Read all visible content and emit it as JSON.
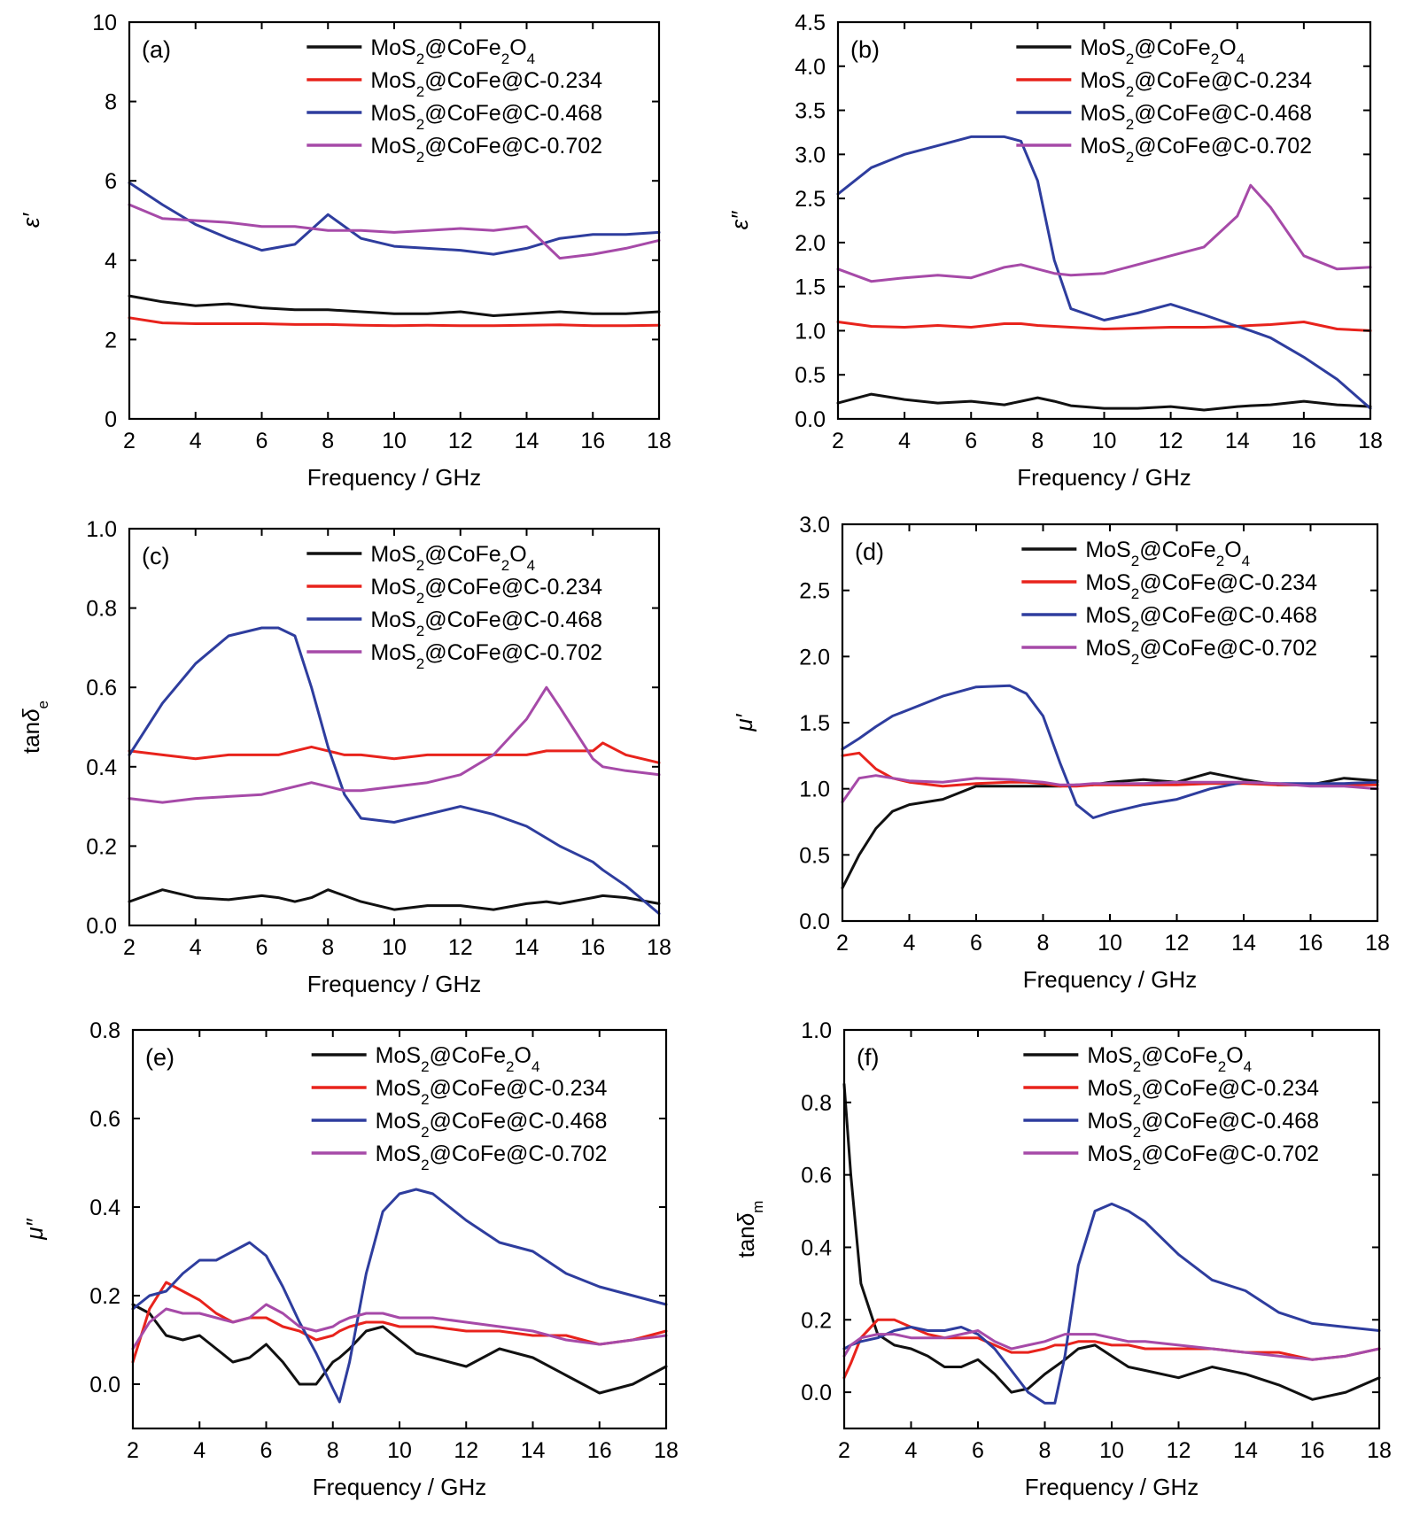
{
  "colors": {
    "black": "#111111",
    "red": "#e8231c",
    "blue": "#2e3d9e",
    "magenta": "#a64aa8"
  },
  "chart_data": [
    {
      "type": "line",
      "panel_label": "(a)",
      "xlabel": "Frequency / GHz",
      "ylabel": "ε′",
      "xlim": [
        2,
        18
      ],
      "ylim": [
        0,
        10
      ],
      "xticks": [
        2,
        4,
        6,
        8,
        10,
        12,
        14,
        16,
        18
      ],
      "yticks": [
        0,
        2,
        4,
        6,
        8,
        10
      ],
      "legend_position": "top-right",
      "x": [
        2,
        3,
        4,
        5,
        6,
        7,
        8,
        9,
        10,
        11,
        12,
        13,
        14,
        15,
        16,
        17,
        18
      ],
      "series": [
        {
          "name": "MoS₂@CoFe₂O₄",
          "color": "black",
          "values": [
            3.1,
            2.95,
            2.85,
            2.9,
            2.8,
            2.75,
            2.75,
            2.7,
            2.65,
            2.65,
            2.7,
            2.6,
            2.65,
            2.7,
            2.65,
            2.65,
            2.7
          ]
        },
        {
          "name": "MoS₂@CoFe@C-0.234",
          "color": "red",
          "values": [
            2.55,
            2.42,
            2.4,
            2.4,
            2.4,
            2.38,
            2.38,
            2.36,
            2.35,
            2.36,
            2.35,
            2.35,
            2.36,
            2.37,
            2.35,
            2.35,
            2.36
          ]
        },
        {
          "name": "MoS₂@CoFe@C-0.468",
          "color": "blue",
          "values": [
            5.95,
            5.4,
            4.9,
            4.55,
            4.25,
            4.4,
            5.15,
            4.55,
            4.35,
            4.3,
            4.25,
            4.15,
            4.3,
            4.55,
            4.65,
            4.65,
            4.7
          ]
        },
        {
          "name": "MoS₂@CoFe@C-0.702",
          "color": "magenta",
          "values": [
            5.4,
            5.05,
            5.0,
            4.95,
            4.85,
            4.85,
            4.75,
            4.75,
            4.7,
            4.75,
            4.8,
            4.75,
            4.85,
            4.05,
            4.15,
            4.3,
            4.5
          ]
        }
      ]
    },
    {
      "type": "line",
      "panel_label": "(b)",
      "xlabel": "Frequency / GHz",
      "ylabel": "ε″",
      "xlim": [
        2,
        18
      ],
      "ylim": [
        0,
        4.5
      ],
      "xticks": [
        2,
        4,
        6,
        8,
        10,
        12,
        14,
        16,
        18
      ],
      "yticks": [
        0.0,
        0.5,
        1.0,
        1.5,
        2.0,
        2.5,
        3.0,
        3.5,
        4.0,
        4.5
      ],
      "legend_position": "top-right",
      "x": [
        2,
        3,
        4,
        5,
        6,
        7,
        7.5,
        8,
        8.5,
        9,
        10,
        11,
        12,
        13,
        14,
        14.4,
        15,
        16,
        17,
        18
      ],
      "series": [
        {
          "name": "MoS₂@CoFe₂O₄",
          "color": "black",
          "values": [
            0.18,
            0.28,
            0.22,
            0.18,
            0.2,
            0.16,
            0.2,
            0.24,
            0.2,
            0.15,
            0.12,
            0.12,
            0.14,
            0.1,
            0.14,
            0.15,
            0.16,
            0.2,
            0.16,
            0.14
          ]
        },
        {
          "name": "MoS₂@CoFe@C-0.234",
          "color": "red",
          "values": [
            1.1,
            1.05,
            1.04,
            1.06,
            1.04,
            1.08,
            1.08,
            1.06,
            1.05,
            1.04,
            1.02,
            1.03,
            1.04,
            1.04,
            1.05,
            1.06,
            1.07,
            1.1,
            1.02,
            1.0
          ]
        },
        {
          "name": "MoS₂@CoFe@C-0.468",
          "color": "blue",
          "values": [
            2.55,
            2.85,
            3.0,
            3.1,
            3.2,
            3.2,
            3.15,
            2.7,
            1.8,
            1.25,
            1.12,
            1.2,
            1.3,
            1.18,
            1.05,
            1.0,
            0.92,
            0.7,
            0.45,
            0.12
          ]
        },
        {
          "name": "MoS₂@CoFe@C-0.702",
          "color": "magenta",
          "values": [
            1.7,
            1.56,
            1.6,
            1.63,
            1.6,
            1.72,
            1.75,
            1.7,
            1.65,
            1.63,
            1.65,
            1.75,
            1.85,
            1.95,
            2.3,
            2.65,
            2.4,
            1.85,
            1.7,
            1.72
          ]
        }
      ]
    },
    {
      "type": "line",
      "panel_label": "(c)",
      "xlabel": "Frequency / GHz",
      "ylabel": "tanδe",
      "xlim": [
        2,
        18
      ],
      "ylim": [
        0,
        1.0
      ],
      "xticks": [
        2,
        4,
        6,
        8,
        10,
        12,
        14,
        16,
        18
      ],
      "yticks": [
        0.0,
        0.2,
        0.4,
        0.6,
        0.8,
        1.0
      ],
      "legend_position": "top-right",
      "x": [
        2,
        3,
        4,
        5,
        6,
        6.5,
        7,
        7.5,
        8,
        8.5,
        9,
        10,
        11,
        12,
        13,
        14,
        14.6,
        15,
        16,
        16.3,
        17,
        18
      ],
      "series": [
        {
          "name": "MoS₂@CoFe₂O₄",
          "color": "black",
          "values": [
            0.06,
            0.09,
            0.07,
            0.065,
            0.075,
            0.07,
            0.06,
            0.07,
            0.09,
            0.075,
            0.06,
            0.04,
            0.05,
            0.05,
            0.04,
            0.055,
            0.06,
            0.055,
            0.07,
            0.075,
            0.07,
            0.055
          ]
        },
        {
          "name": "MoS₂@CoFe@C-0.234",
          "color": "red",
          "values": [
            0.44,
            0.43,
            0.42,
            0.43,
            0.43,
            0.43,
            0.44,
            0.45,
            0.44,
            0.43,
            0.43,
            0.42,
            0.43,
            0.43,
            0.43,
            0.43,
            0.44,
            0.44,
            0.44,
            0.46,
            0.43,
            0.41
          ]
        },
        {
          "name": "MoS₂@CoFe@C-0.468",
          "color": "blue",
          "values": [
            0.43,
            0.56,
            0.66,
            0.73,
            0.75,
            0.75,
            0.73,
            0.6,
            0.45,
            0.33,
            0.27,
            0.26,
            0.28,
            0.3,
            0.28,
            0.25,
            0.22,
            0.2,
            0.16,
            0.14,
            0.1,
            0.03
          ]
        },
        {
          "name": "MoS₂@CoFe@C-0.702",
          "color": "magenta",
          "values": [
            0.32,
            0.31,
            0.32,
            0.325,
            0.33,
            0.34,
            0.35,
            0.36,
            0.35,
            0.34,
            0.34,
            0.35,
            0.36,
            0.38,
            0.43,
            0.52,
            0.6,
            0.55,
            0.42,
            0.4,
            0.39,
            0.38
          ]
        }
      ]
    },
    {
      "type": "line",
      "panel_label": "(d)",
      "xlabel": "Frequency / GHz",
      "ylabel": "μ′",
      "xlim": [
        2,
        18
      ],
      "ylim": [
        0,
        3.0
      ],
      "xticks": [
        2,
        4,
        6,
        8,
        10,
        12,
        14,
        16,
        18
      ],
      "yticks": [
        0.0,
        0.5,
        1.0,
        1.5,
        2.0,
        2.5,
        3.0
      ],
      "legend_position": "top-right",
      "x": [
        2,
        2.5,
        3,
        3.5,
        4,
        5,
        6,
        7,
        7.5,
        8,
        8.5,
        9,
        9.5,
        10,
        11,
        12,
        13,
        14,
        15,
        16,
        17,
        18
      ],
      "series": [
        {
          "name": "MoS₂@CoFe₂O₄",
          "color": "black",
          "values": [
            0.25,
            0.5,
            0.7,
            0.83,
            0.88,
            0.92,
            1.02,
            1.02,
            1.02,
            1.02,
            1.02,
            1.03,
            1.03,
            1.05,
            1.07,
            1.05,
            1.12,
            1.07,
            1.03,
            1.03,
            1.08,
            1.06
          ]
        },
        {
          "name": "MoS₂@CoFe@C-0.234",
          "color": "red",
          "values": [
            1.25,
            1.27,
            1.15,
            1.08,
            1.05,
            1.02,
            1.04,
            1.05,
            1.05,
            1.04,
            1.02,
            1.02,
            1.03,
            1.03,
            1.03,
            1.03,
            1.04,
            1.04,
            1.03,
            1.03,
            1.03,
            1.03
          ]
        },
        {
          "name": "MoS₂@CoFe@C-0.468",
          "color": "blue",
          "values": [
            1.3,
            1.38,
            1.47,
            1.55,
            1.6,
            1.7,
            1.77,
            1.78,
            1.72,
            1.55,
            1.2,
            0.88,
            0.78,
            0.82,
            0.88,
            0.92,
            1.0,
            1.05,
            1.04,
            1.04,
            1.04,
            1.05
          ]
        },
        {
          "name": "MoS₂@CoFe@C-0.702",
          "color": "magenta",
          "values": [
            0.9,
            1.08,
            1.1,
            1.08,
            1.06,
            1.05,
            1.08,
            1.07,
            1.06,
            1.05,
            1.03,
            1.03,
            1.04,
            1.04,
            1.04,
            1.05,
            1.05,
            1.05,
            1.04,
            1.02,
            1.02,
            1.0
          ]
        }
      ]
    },
    {
      "type": "line",
      "panel_label": "(e)",
      "xlabel": "Frequency / GHz",
      "ylabel": "μ″",
      "xlim": [
        2,
        18
      ],
      "ylim": [
        -0.1,
        0.8
      ],
      "xticks": [
        2,
        4,
        6,
        8,
        10,
        12,
        14,
        16,
        18
      ],
      "yticks": [
        0.0,
        0.2,
        0.4,
        0.6,
        0.8
      ],
      "legend_position": "top-right",
      "x": [
        2,
        2.5,
        3,
        3.5,
        4,
        4.5,
        5,
        5.5,
        6,
        6.5,
        7,
        7.5,
        8,
        8.2,
        8.5,
        9,
        9.5,
        10,
        10.5,
        11,
        12,
        13,
        14,
        15,
        16,
        17,
        18
      ],
      "series": [
        {
          "name": "MoS₂@CoFe₂O₄",
          "color": "black",
          "values": [
            0.18,
            0.16,
            0.11,
            0.1,
            0.11,
            0.08,
            0.05,
            0.06,
            0.09,
            0.05,
            0.0,
            0.0,
            0.05,
            0.06,
            0.08,
            0.12,
            0.13,
            0.1,
            0.07,
            0.06,
            0.04,
            0.08,
            0.06,
            0.02,
            -0.02,
            0.0,
            0.04
          ]
        },
        {
          "name": "MoS₂@CoFe@C-0.234",
          "color": "red",
          "values": [
            0.05,
            0.17,
            0.23,
            0.21,
            0.19,
            0.16,
            0.14,
            0.15,
            0.15,
            0.13,
            0.12,
            0.1,
            0.11,
            0.12,
            0.13,
            0.14,
            0.14,
            0.13,
            0.13,
            0.13,
            0.12,
            0.12,
            0.11,
            0.11,
            0.09,
            0.1,
            0.12
          ]
        },
        {
          "name": "MoS₂@CoFe@C-0.468",
          "color": "blue",
          "values": [
            0.17,
            0.2,
            0.21,
            0.25,
            0.28,
            0.28,
            0.3,
            0.32,
            0.29,
            0.22,
            0.14,
            0.07,
            -0.01,
            -0.04,
            0.05,
            0.25,
            0.39,
            0.43,
            0.44,
            0.43,
            0.37,
            0.32,
            0.3,
            0.25,
            0.22,
            0.2,
            0.18
          ]
        },
        {
          "name": "MoS₂@CoFe@C-0.702",
          "color": "magenta",
          "values": [
            0.08,
            0.14,
            0.17,
            0.16,
            0.16,
            0.15,
            0.14,
            0.15,
            0.18,
            0.16,
            0.13,
            0.12,
            0.13,
            0.14,
            0.15,
            0.16,
            0.16,
            0.15,
            0.15,
            0.15,
            0.14,
            0.13,
            0.12,
            0.1,
            0.09,
            0.1,
            0.11
          ]
        }
      ]
    },
    {
      "type": "line",
      "panel_label": "(f)",
      "xlabel": "Frequency / GHz",
      "ylabel": "tanδm",
      "xlim": [
        2,
        18
      ],
      "ylim": [
        -0.1,
        1.0
      ],
      "xticks": [
        2,
        4,
        6,
        8,
        10,
        12,
        14,
        16,
        18
      ],
      "yticks": [
        0.0,
        0.2,
        0.4,
        0.6,
        0.8,
        1.0
      ],
      "legend_position": "top-right",
      "x": [
        2,
        2.2,
        2.5,
        3,
        3.5,
        4,
        4.5,
        5,
        5.5,
        6,
        6.5,
        7,
        7.5,
        8,
        8.3,
        8.6,
        9,
        9.5,
        10,
        10.5,
        11,
        12,
        13,
        14,
        15,
        16,
        17,
        18
      ],
      "series": [
        {
          "name": "MoS₂@CoFe₂O₄",
          "color": "black",
          "values": [
            0.85,
            0.6,
            0.3,
            0.16,
            0.13,
            0.12,
            0.1,
            0.07,
            0.07,
            0.09,
            0.05,
            0.0,
            0.01,
            0.05,
            0.07,
            0.09,
            0.12,
            0.13,
            0.1,
            0.07,
            0.06,
            0.04,
            0.07,
            0.05,
            0.02,
            -0.02,
            0.0,
            0.04
          ]
        },
        {
          "name": "MoS₂@CoFe@C-0.234",
          "color": "red",
          "values": [
            0.04,
            0.08,
            0.15,
            0.2,
            0.2,
            0.18,
            0.16,
            0.15,
            0.15,
            0.15,
            0.13,
            0.11,
            0.11,
            0.12,
            0.13,
            0.13,
            0.14,
            0.14,
            0.13,
            0.13,
            0.12,
            0.12,
            0.12,
            0.11,
            0.11,
            0.09,
            0.1,
            0.12
          ]
        },
        {
          "name": "MoS₂@CoFe@C-0.468",
          "color": "blue",
          "values": [
            0.12,
            0.13,
            0.14,
            0.15,
            0.17,
            0.18,
            0.17,
            0.17,
            0.18,
            0.16,
            0.12,
            0.06,
            0.0,
            -0.03,
            -0.03,
            0.1,
            0.35,
            0.5,
            0.52,
            0.5,
            0.47,
            0.38,
            0.31,
            0.28,
            0.22,
            0.19,
            0.18,
            0.17
          ]
        },
        {
          "name": "MoS₂@CoFe@C-0.702",
          "color": "magenta",
          "values": [
            0.1,
            0.13,
            0.15,
            0.16,
            0.16,
            0.15,
            0.15,
            0.15,
            0.16,
            0.17,
            0.14,
            0.12,
            0.13,
            0.14,
            0.15,
            0.16,
            0.16,
            0.16,
            0.15,
            0.14,
            0.14,
            0.13,
            0.12,
            0.11,
            0.1,
            0.09,
            0.1,
            0.12
          ]
        }
      ]
    }
  ]
}
